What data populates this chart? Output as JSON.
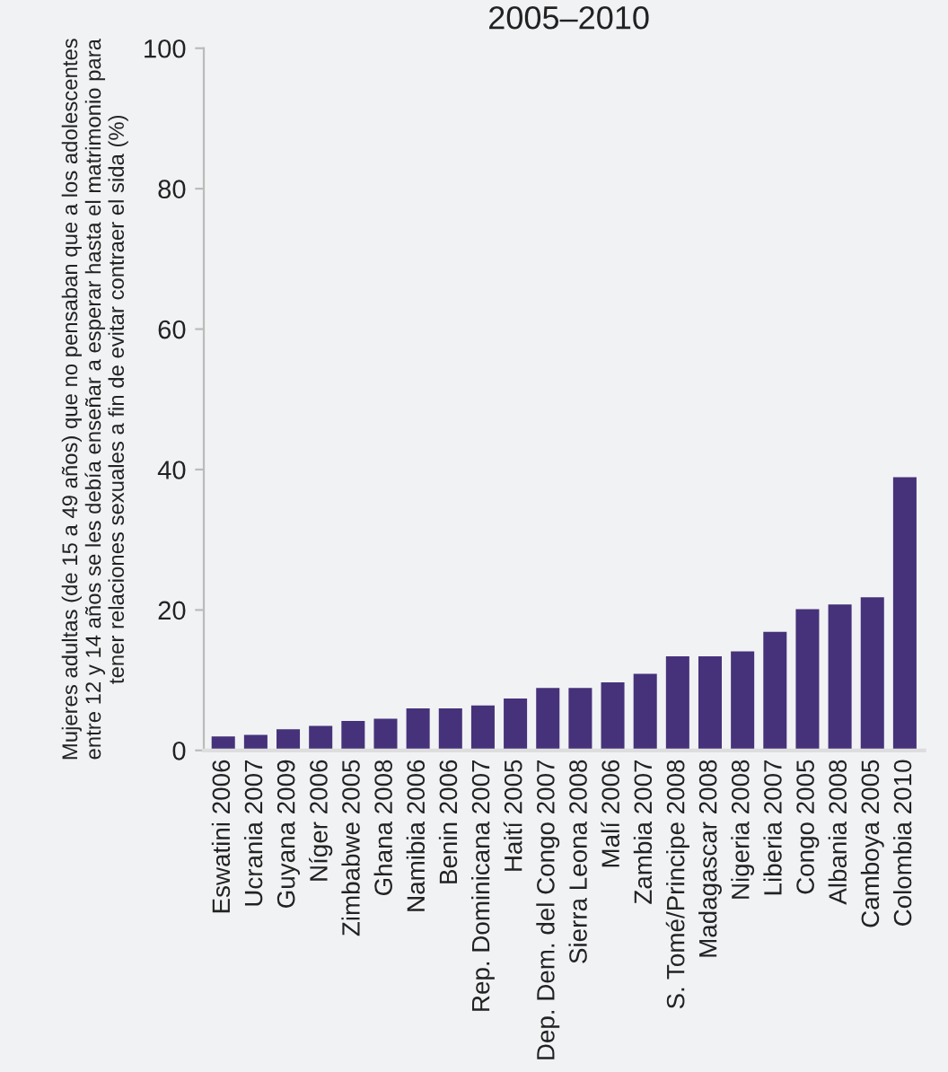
{
  "chart_data": {
    "type": "bar",
    "title": "2005–2010",
    "ylabel": "Mujeres adultas (de 15 a 49 años) que no pensaban que a los adolescentes\nentre 12 y 14 años se les debía enseñar a esperar hasta el matrimonio para\ntener relaciones sexuales a fin de evitar contraer el sida (%)",
    "categories": [
      "Eswatini 2006",
      "Ucrania 2007",
      "Guyana 2009",
      "Níger 2006",
      "Zimbabwe 2005",
      "Ghana 2008",
      "Namibia 2006",
      "Benin 2006",
      "Rep. Dominicana 2007",
      "Haití 2005",
      "Dep. Dem. del Congo 2007",
      "Sierra Leona 2008",
      "Malí 2006",
      "Zambia 2007",
      "S. Tomé/Principe 2008",
      "Madagascar 2008",
      "Nigeria 2008",
      "Liberia 2007",
      "Congo 2005",
      "Albania 2008",
      "Camboya 2005",
      "Colombia 2010"
    ],
    "values": [
      2.0,
      2.2,
      3.0,
      3.5,
      4.2,
      4.5,
      6.0,
      6.0,
      6.4,
      7.4,
      8.9,
      8.9,
      9.7,
      10.9,
      13.4,
      13.4,
      14.1,
      16.9,
      20.1,
      20.8,
      21.8,
      38.9
    ],
    "color": "#46327a",
    "ylim": [
      0,
      100
    ],
    "yticks": [
      0,
      20,
      40,
      60,
      80,
      100
    ],
    "grid": false,
    "legend": false
  }
}
